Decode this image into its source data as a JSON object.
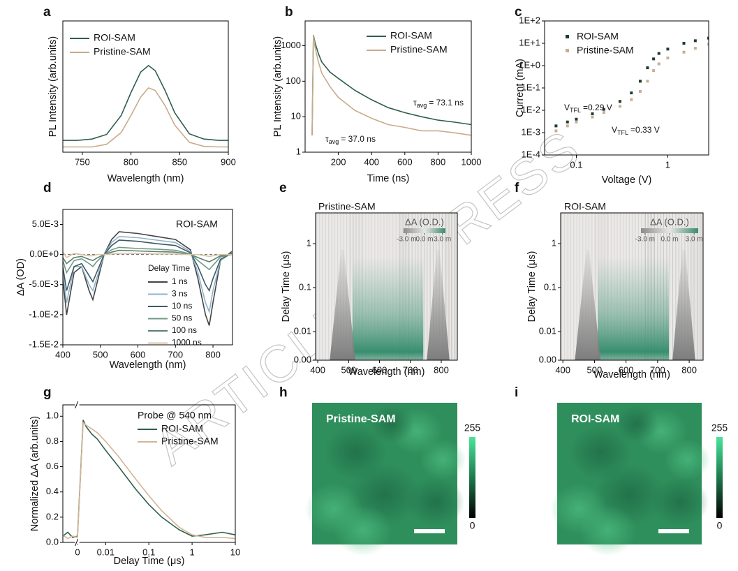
{
  "watermark": "ARTICLE IN PRESS",
  "chart_data": [
    {
      "label": "a",
      "type": "line",
      "xlabel": "Wavelength (nm)",
      "ylabel": "PL Intensity (arb.units)",
      "x": [
        730,
        745,
        760,
        775,
        790,
        800,
        810,
        818,
        825,
        835,
        845,
        860,
        875,
        890,
        900
      ],
      "xlim": [
        730,
        900
      ],
      "xticks": [
        750,
        800,
        850,
        900
      ],
      "ylim": [
        0,
        1
      ],
      "legend": "upper left",
      "series": [
        {
          "name": "ROI-SAM",
          "color": "#2e5e4e",
          "values": [
            0.09,
            0.09,
            0.1,
            0.135,
            0.28,
            0.455,
            0.61,
            0.66,
            0.62,
            0.47,
            0.3,
            0.14,
            0.1,
            0.09,
            0.09
          ]
        },
        {
          "name": "Pristine-SAM",
          "color": "#c9ab8a",
          "values": [
            0.04,
            0.04,
            0.04,
            0.06,
            0.15,
            0.28,
            0.42,
            0.49,
            0.47,
            0.355,
            0.206,
            0.075,
            0.044,
            0.04,
            0.04
          ]
        }
      ]
    },
    {
      "label": "b",
      "type": "line",
      "xlabel": "Time (ns)",
      "ylabel": "PL Intensity (arb.units)",
      "x": [
        42,
        50,
        60,
        80,
        100,
        150,
        200,
        300,
        400,
        500,
        600,
        700,
        800,
        900,
        1000
      ],
      "xlim": [
        0,
        1000
      ],
      "xticks": [
        200,
        400,
        600,
        800,
        1000
      ],
      "ylim": [
        1,
        5000
      ],
      "yscale": "log",
      "yticks": [
        1,
        10,
        100,
        1000
      ],
      "legend": "upper right",
      "series": [
        {
          "name": "ROI-SAM",
          "color": "#2e5e4e",
          "values": [
            3,
            2000,
            1200,
            600,
            350,
            180,
            120,
            55,
            30,
            18,
            13,
            10,
            8,
            7,
            6
          ]
        },
        {
          "name": "Pristine-SAM",
          "color": "#c9ab8a",
          "values": [
            3,
            2000,
            900,
            350,
            170,
            70,
            35,
            15,
            9,
            6,
            5,
            4,
            4,
            3.5,
            3
          ]
        }
      ],
      "annotations": [
        {
          "prefix": "τ",
          "sub": "avg",
          "suffix": "= 73.1 ns"
        },
        {
          "prefix": "τ",
          "sub": "avg",
          "suffix": "= 37.0 ns"
        }
      ]
    },
    {
      "label": "c",
      "type": "scatter",
      "xlabel": "Voltage (V)",
      "ylabel": "Current (mA)",
      "x": [
        0.06,
        0.08,
        0.1,
        0.15,
        0.2,
        0.3,
        0.4,
        0.5,
        0.6,
        0.7,
        0.8,
        1,
        1.5,
        2,
        2.8
      ],
      "xlim": [
        0.045,
        2.8
      ],
      "xscale": "log",
      "xticks": [
        0.1,
        1
      ],
      "ylim": [
        0.0001,
        100
      ],
      "yscale": "log",
      "yticks": [
        {
          "value": 0.0001,
          "label": "1E-4"
        },
        {
          "value": 0.001,
          "label": "1E-3"
        },
        {
          "value": 0.01,
          "label": "1E-2"
        },
        {
          "value": 0.1,
          "label": "1E-1"
        },
        {
          "value": 1,
          "label": "1E+0"
        },
        {
          "value": 10,
          "label": "1E+1"
        },
        {
          "value": 100,
          "label": "1E+2"
        }
      ],
      "legend": "upper left",
      "series": [
        {
          "name": "ROI-SAM",
          "color": "#1e3d2f",
          "values": [
            0.002,
            0.003,
            0.004,
            0.007,
            0.011,
            0.025,
            0.06,
            0.2,
            0.8,
            2,
            3.5,
            5.5,
            10,
            13,
            17
          ]
        },
        {
          "name": "Pristine-SAM",
          "color": "#c8b08f",
          "values": [
            0.0012,
            0.002,
            0.003,
            0.005,
            0.008,
            0.015,
            0.03,
            0.07,
            0.2,
            0.6,
            1.2,
            2.2,
            4,
            6,
            9
          ]
        }
      ],
      "annotations": [
        {
          "prefix": "V",
          "sub": "TFL",
          "suffix": "=0.29 V"
        },
        {
          "prefix": "V",
          "sub": "TFL",
          "suffix": "=0.33 V"
        }
      ]
    },
    {
      "label": "d",
      "type": "line",
      "title": "ROI-SAM",
      "xlabel": "Wavelength (nm)",
      "ylabel": "ΔA (OD)",
      "x": [
        400,
        410,
        430,
        450,
        470,
        480,
        490,
        510,
        530,
        550,
        600,
        650,
        700,
        740,
        760,
        780,
        790,
        800,
        820,
        850
      ],
      "xlim": [
        400,
        852
      ],
      "xticks": [
        400,
        500,
        600,
        700,
        800
      ],
      "ylim": [
        -0.015,
        0.0075
      ],
      "yticks": [
        {
          "value": -0.015,
          "label": "-1.5E-2"
        },
        {
          "value": -0.01,
          "label": "-1.0E-2"
        },
        {
          "value": -0.005,
          "label": "-5.0E-3"
        },
        {
          "value": 0,
          "label": "0.0E+0"
        },
        {
          "value": 0.005,
          "label": "5.0E-3"
        }
      ],
      "legend_title": "Delay Time",
      "legend": "lower right",
      "series": [
        {
          "name": "1 ns",
          "color": "#444444",
          "values": [
            -0.004,
            -0.01,
            -0.003,
            -0.002,
            -0.006,
            -0.0075,
            -0.005,
            0,
            0.0025,
            0.0038,
            0.0035,
            0.003,
            0.0025,
            0.0008,
            -0.004,
            -0.01,
            -0.0118,
            -0.008,
            -0.001,
            0.0005
          ]
        },
        {
          "name": "3 ns",
          "color": "#8fb3c9",
          "values": [
            -0.003,
            -0.008,
            -0.002,
            -0.002,
            -0.005,
            -0.006,
            -0.004,
            0,
            0.002,
            0.003,
            0.0028,
            0.0024,
            0.002,
            0.0005,
            -0.003,
            -0.008,
            -0.0095,
            -0.006,
            -0.001,
            0.0003
          ]
        },
        {
          "name": "10 ns",
          "color": "#3f5a66",
          "values": [
            -0.002,
            -0.006,
            -0.002,
            -0.0015,
            -0.0035,
            -0.0045,
            -0.003,
            0,
            0.0015,
            0.0024,
            0.0022,
            0.0018,
            0.0015,
            0.0003,
            -0.002,
            -0.005,
            -0.006,
            -0.004,
            -0.0008,
            0.0002
          ]
        },
        {
          "name": "50 ns",
          "color": "#6f9a86",
          "values": [
            -0.001,
            -0.003,
            -0.001,
            -0.0007,
            -0.0015,
            -0.002,
            -0.0012,
            0,
            0.0008,
            0.0012,
            0.001,
            0.0009,
            0.0007,
            0.0001,
            -0.001,
            -0.002,
            -0.0025,
            -0.0018,
            -0.0004,
            0
          ]
        },
        {
          "name": "100 ns",
          "color": "#5b7f6e",
          "values": [
            -0.0005,
            -0.0015,
            -0.0005,
            -0.0003,
            -0.0008,
            -0.001,
            -0.0006,
            0,
            0.0004,
            0.0007,
            0.0006,
            0.0005,
            0.0004,
            0,
            -0.0005,
            -0.001,
            -0.0012,
            -0.0009,
            -0.0002,
            0
          ]
        },
        {
          "name": "1000 ns",
          "color": "#d9c3a5",
          "values": [
            0.0005,
            -0.0005,
            0.0002,
            0,
            -0.0002,
            -0.0002,
            0,
            0,
            0.0001,
            0.0002,
            0.0002,
            0.0001,
            0.0001,
            0,
            0,
            -0.0002,
            -0.0003,
            -0.0002,
            0,
            0
          ]
        }
      ]
    },
    {
      "label": "e",
      "type": "heatmap",
      "title": "Pristine-SAM",
      "xlabel": "Wavelength (nm)",
      "ylabel": "Delay Time (μs)",
      "xlim": [
        393,
        852
      ],
      "xticks": [
        400,
        500,
        600,
        700,
        800
      ],
      "ylim": [
        0,
        5
      ],
      "yscale": "symlog",
      "yticks": [
        {
          "value": 0,
          "label": "0.00"
        },
        0.01,
        0.1,
        1
      ],
      "colorbar_label": "ΔA (O.D.)",
      "clim": [
        -0.0035,
        0.0035
      ],
      "colorbar_ticks": [
        {
          "value": -0.003,
          "label": "-3.0 m"
        },
        {
          "value": 0,
          "label": "0.0 m"
        },
        {
          "value": 0.003,
          "label": "3.0 m"
        }
      ]
    },
    {
      "label": "f",
      "type": "heatmap",
      "title": "ROI-SAM",
      "xlabel": "Wavelength (nm)",
      "ylabel": "Delay Time (μs)",
      "xlim": [
        393,
        844
      ],
      "xticks": [
        400,
        500,
        600,
        700,
        800
      ],
      "ylim": [
        0,
        5
      ],
      "yscale": "symlog",
      "yticks": [
        {
          "value": 0,
          "label": "0.00"
        },
        0.01,
        0.1,
        1
      ],
      "colorbar_label": "ΔA (O.D.)",
      "clim": [
        -0.0035,
        0.0035
      ],
      "colorbar_ticks": [
        {
          "value": -0.003,
          "label": "-3.0 m"
        },
        {
          "value": 0,
          "label": "0.0 m"
        },
        {
          "value": 0.003,
          "label": "3.0 m"
        }
      ]
    },
    {
      "label": "g",
      "type": "line",
      "xlabel": "Delay Time (μs)",
      "ylabel": "Normalized ΔA (arb.units)",
      "x": [
        -0.003,
        -0.002,
        -0.001,
        0,
        0.002,
        0.003,
        0.005,
        0.007,
        0.01,
        0.02,
        0.03,
        0.05,
        0.1,
        0.2,
        0.5,
        1,
        2,
        5,
        10
      ],
      "xlim": [
        -0.003,
        10
      ],
      "xscale": "symlog",
      "xticks": [
        0,
        0.01,
        0.1,
        1,
        10
      ],
      "ylim": [
        0,
        1.09
      ],
      "yticks": [
        {
          "value": 0,
          "label": "0.0"
        },
        0.2,
        0.4,
        0.6,
        0.8,
        {
          "value": 1,
          "label": "1.0"
        }
      ],
      "legend_title": "Probe @ 540 nm",
      "legend": "upper right",
      "series": [
        {
          "name": "ROI-SAM",
          "color": "#2e5e4e",
          "values": [
            0.05,
            0.08,
            0.04,
            0.05,
            0.97,
            0.92,
            0.86,
            0.82,
            0.73,
            0.6,
            0.52,
            0.42,
            0.3,
            0.2,
            0.1,
            0.05,
            0.06,
            0.08,
            0.06
          ]
        },
        {
          "name": "Pristine-SAM",
          "color": "#d4b596",
          "values": [
            0.06,
            0.03,
            0.05,
            0.04,
            0.95,
            0.93,
            0.9,
            0.87,
            0.8,
            0.68,
            0.6,
            0.5,
            0.37,
            0.25,
            0.12,
            0.06,
            0.04,
            0.04,
            0.03
          ]
        }
      ]
    },
    {
      "label": "h",
      "type": "image",
      "title": "Pristine-SAM",
      "clim": [
        0,
        255
      ],
      "colorbar_ticks": [
        0,
        255
      ]
    },
    {
      "label": "i",
      "type": "image",
      "title": "ROI-SAM",
      "clim": [
        0,
        255
      ],
      "colorbar_ticks": [
        0,
        255
      ]
    }
  ]
}
